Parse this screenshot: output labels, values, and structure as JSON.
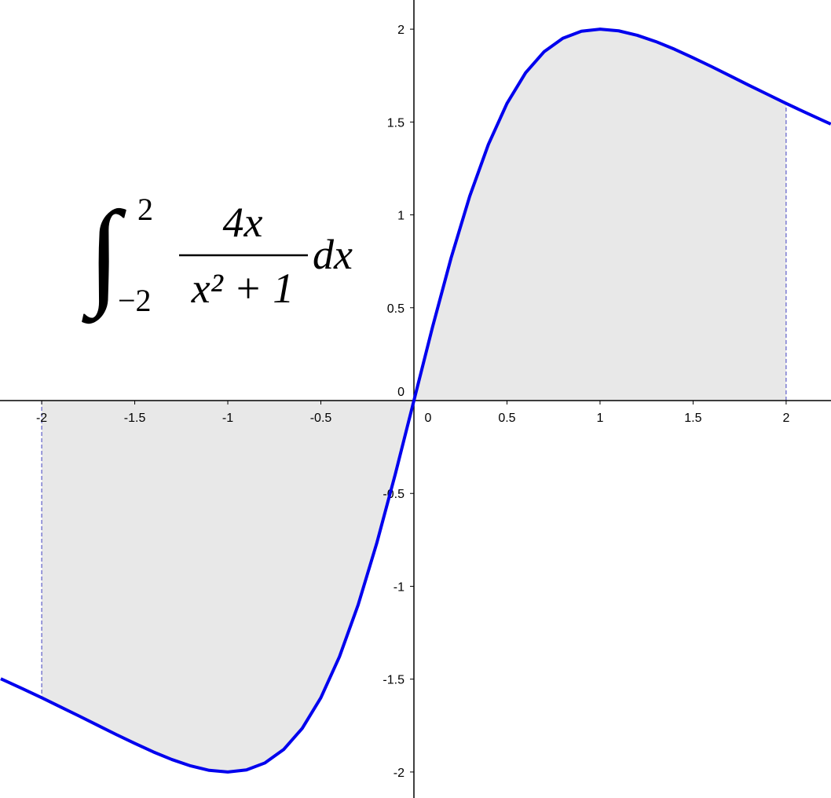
{
  "chart_data": {
    "type": "line",
    "annotation": {
      "symbol": "∫",
      "upper": "2",
      "lower": "−2",
      "numerator": "4x",
      "denominator": "x² + 1",
      "differential": "dx"
    },
    "x": [
      -2.22,
      -2.2,
      -2.1,
      -2.0,
      -1.9,
      -1.8,
      -1.7,
      -1.6,
      -1.5,
      -1.4,
      -1.3,
      -1.2,
      -1.1,
      -1.0,
      -0.9,
      -0.8,
      -0.7,
      -0.6,
      -0.5,
      -0.4,
      -0.3,
      -0.2,
      -0.1,
      0,
      0.1,
      0.2,
      0.3,
      0.4,
      0.5,
      0.6,
      0.7,
      0.8,
      0.9,
      1.0,
      1.1,
      1.2,
      1.3,
      1.4,
      1.5,
      1.6,
      1.7,
      1.8,
      1.9,
      2.0,
      2.1,
      2.2,
      2.24
    ],
    "series": [
      {
        "color": "#0000ee",
        "values": [
          -1.498,
          -1.507,
          -1.553,
          -1.6,
          -1.649,
          -1.698,
          -1.748,
          -1.798,
          -1.846,
          -1.892,
          -1.933,
          -1.967,
          -1.991,
          -2,
          -1.989,
          -1.951,
          -1.879,
          -1.765,
          -1.6,
          -1.379,
          -1.101,
          -0.769,
          -0.396,
          0,
          0.396,
          0.769,
          1.101,
          1.379,
          1.6,
          1.765,
          1.879,
          1.951,
          1.989,
          2,
          1.991,
          1.967,
          1.933,
          1.892,
          1.846,
          1.798,
          1.748,
          1.698,
          1.649,
          1.6,
          1.553,
          1.507,
          1.489
        ]
      }
    ],
    "shade": {
      "from": -2,
      "to": 2,
      "color": "#e8e8e8"
    },
    "xlim": [
      -2.224,
      2.241
    ],
    "ylim": [
      -2.14,
      2.157
    ],
    "xticks": [
      -2,
      -1.5,
      -1,
      -0.5,
      0,
      0.5,
      1,
      1.5,
      2
    ],
    "yticks": [
      -2,
      -1.5,
      -1,
      -0.5,
      0,
      0.5,
      1,
      1.5,
      2
    ]
  }
}
